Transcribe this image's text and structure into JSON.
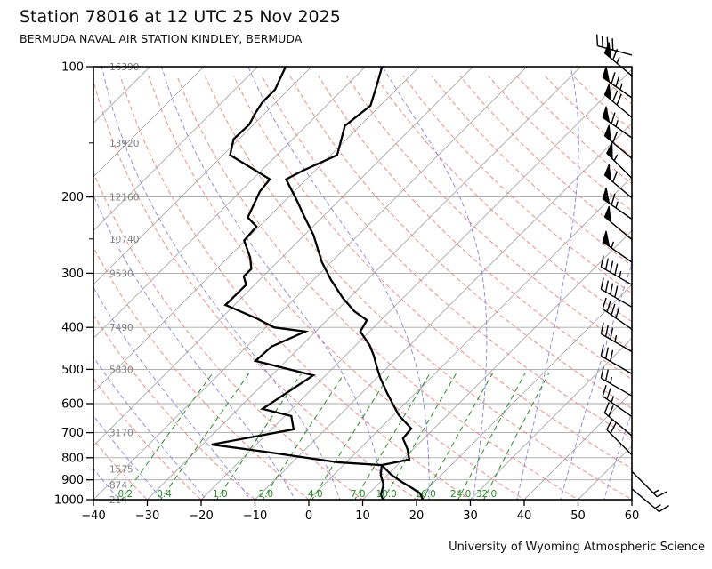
{
  "title": "Station 78016 at 12 UTC 25 Nov 2025",
  "subtitle": "BERMUDA NAVAL AIR STATION KINDLEY, BERMUDA",
  "footer": "University of Wyoming Atmospheric Science",
  "colors": {
    "grid": "#a8a8a8",
    "dry_adiabat": "#ee8080",
    "moist_adiabat": "#8484e0",
    "mixing_ratio": "#2a8a2a",
    "trace": "#000000",
    "altitude_label": "#808080",
    "frame": "#000000"
  },
  "axes": {
    "pressure_ticks": [
      100,
      200,
      300,
      400,
      500,
      600,
      700,
      800,
      900,
      1000
    ],
    "pressure_minor_ticks": [
      150,
      250,
      850,
      925
    ],
    "temp_ticks": [
      -40,
      -30,
      -20,
      -10,
      0,
      10,
      20,
      30,
      40,
      50,
      60
    ],
    "altitude_labels": [
      {
        "p": 100,
        "text": "16390"
      },
      {
        "p": 150,
        "text": "13920"
      },
      {
        "p": 200,
        "text": "12160"
      },
      {
        "p": 250,
        "text": "10740"
      },
      {
        "p": 300,
        "text": "9530"
      },
      {
        "p": 400,
        "text": "7490"
      },
      {
        "p": 500,
        "text": "5830"
      },
      {
        "p": 700,
        "text": "3170"
      },
      {
        "p": 850,
        "text": "1575"
      },
      {
        "p": 925,
        "text": "874"
      },
      {
        "p": 1000,
        "text": "214"
      }
    ],
    "mixing_ratio_labels": [
      {
        "r": 0.2,
        "text": "0.2"
      },
      {
        "r": 0.4,
        "text": "0.4"
      },
      {
        "r": 1,
        "text": "1.0"
      },
      {
        "r": 2,
        "text": "2.0"
      },
      {
        "r": 4,
        "text": "4.0"
      },
      {
        "r": 7,
        "text": "7.0"
      },
      {
        "r": 10,
        "text": "10.0"
      },
      {
        "r": 16,
        "text": "16.0"
      },
      {
        "r": 24,
        "text": "24.0"
      },
      {
        "r": 32,
        "text": "32.0"
      }
    ]
  },
  "chart_data": {
    "type": "skewt-log-p",
    "pressure_range_hpa": [
      100,
      1000
    ],
    "surface_temp_axis_range_c": [
      -40,
      60
    ],
    "isotherm_step_c": 10,
    "dry_adiabat_theta_c": {
      "start": -40,
      "end": 200,
      "step": 10
    },
    "moist_adiabat_start_temps_c": [
      -64,
      -56,
      -48,
      -40,
      -32,
      -24,
      -16,
      -8,
      0,
      8,
      16,
      24,
      32,
      40,
      48,
      56
    ],
    "mixing_ratio_lines_g_kg": [
      0.2,
      0.4,
      1,
      2,
      4,
      7,
      10,
      16,
      24,
      32
    ],
    "temperature_profile_p_t": [
      [
        1005,
        21.4
      ],
      [
        967,
        19.5
      ],
      [
        940,
        17.0
      ],
      [
        910,
        14.0
      ],
      [
        876,
        10.7
      ],
      [
        832,
        7.1
      ],
      [
        808,
        11.2
      ],
      [
        764,
        8.9
      ],
      [
        722,
        6.1
      ],
      [
        685,
        5.8
      ],
      [
        638,
        1.0
      ],
      [
        609,
        -1.5
      ],
      [
        567,
        -5.3
      ],
      [
        523,
        -9.4
      ],
      [
        492,
        -12.2
      ],
      [
        465,
        -14.7
      ],
      [
        439,
        -17.5
      ],
      [
        409,
        -21.7
      ],
      [
        385,
        -22.6
      ],
      [
        367,
        -26.6
      ],
      [
        342,
        -31.2
      ],
      [
        311,
        -36.7
      ],
      [
        283,
        -41.7
      ],
      [
        245,
        -48.3
      ],
      [
        218,
        -54.4
      ],
      [
        203,
        -58.0
      ],
      [
        182,
        -63.8
      ],
      [
        174,
        -62.3
      ],
      [
        160,
        -58.8
      ],
      [
        148,
        -60.8
      ],
      [
        137,
        -62.8
      ],
      [
        123,
        -61.8
      ],
      [
        110,
        -64.5
      ],
      [
        100,
        -66.9
      ]
    ],
    "dewpoint_profile_p_t": [
      [
        1005,
        14.0
      ],
      [
        972,
        12.4
      ],
      [
        923,
        11.1
      ],
      [
        878,
        8.8
      ],
      [
        832,
        7.1
      ],
      [
        820,
        -1.5
      ],
      [
        775,
        -17.0
      ],
      [
        746,
        -28.3
      ],
      [
        688,
        -15.9
      ],
      [
        641,
        -18.8
      ],
      [
        617,
        -25.5
      ],
      [
        516,
        -22.3
      ],
      [
        478,
        -35.7
      ],
      [
        443,
        -35.4
      ],
      [
        409,
        -31.9
      ],
      [
        400,
        -38.5
      ],
      [
        381,
        -43.5
      ],
      [
        355,
        -51.7
      ],
      [
        319,
        -51.6
      ],
      [
        305,
        -53.6
      ],
      [
        293,
        -53.6
      ],
      [
        276,
        -55.9
      ],
      [
        252,
        -60.2
      ],
      [
        234,
        -60.5
      ],
      [
        223,
        -63.8
      ],
      [
        194,
        -66.4
      ],
      [
        182,
        -66.8
      ],
      [
        160,
        -78.7
      ],
      [
        147,
        -81.0
      ],
      [
        136,
        -80.8
      ],
      [
        128,
        -81.8
      ],
      [
        121,
        -82.5
      ],
      [
        113,
        -82.5
      ],
      [
        100,
        -84.8
      ]
    ],
    "wind_barbs": [
      {
        "p": 94,
        "kt": 40,
        "dir": 285
      },
      {
        "p": 105,
        "kt": 65,
        "dir": 310
      },
      {
        "p": 118,
        "kt": 75,
        "dir": 305
      },
      {
        "p": 131,
        "kt": 70,
        "dir": 310
      },
      {
        "p": 146,
        "kt": 65,
        "dir": 305
      },
      {
        "p": 163,
        "kt": 60,
        "dir": 310
      },
      {
        "p": 181,
        "kt": 55,
        "dir": 315
      },
      {
        "p": 201,
        "kt": 60,
        "dir": 310
      },
      {
        "p": 225,
        "kt": 65,
        "dir": 305
      },
      {
        "p": 251,
        "kt": 50,
        "dir": 310
      },
      {
        "p": 283,
        "kt": 55,
        "dir": 305
      },
      {
        "p": 319,
        "kt": 45,
        "dir": 300
      },
      {
        "p": 359,
        "kt": 40,
        "dir": 300
      },
      {
        "p": 404,
        "kt": 40,
        "dir": 305
      },
      {
        "p": 455,
        "kt": 35,
        "dir": 300
      },
      {
        "p": 512,
        "kt": 30,
        "dir": 300
      },
      {
        "p": 576,
        "kt": 25,
        "dir": 300
      },
      {
        "p": 643,
        "kt": 25,
        "dir": 305
      },
      {
        "p": 712,
        "kt": 20,
        "dir": 310
      },
      {
        "p": 788,
        "kt": 20,
        "dir": 315
      },
      {
        "p": 861,
        "kt": 15,
        "dir": 135
      },
      {
        "p": 944,
        "kt": 15,
        "dir": 130
      }
    ]
  }
}
